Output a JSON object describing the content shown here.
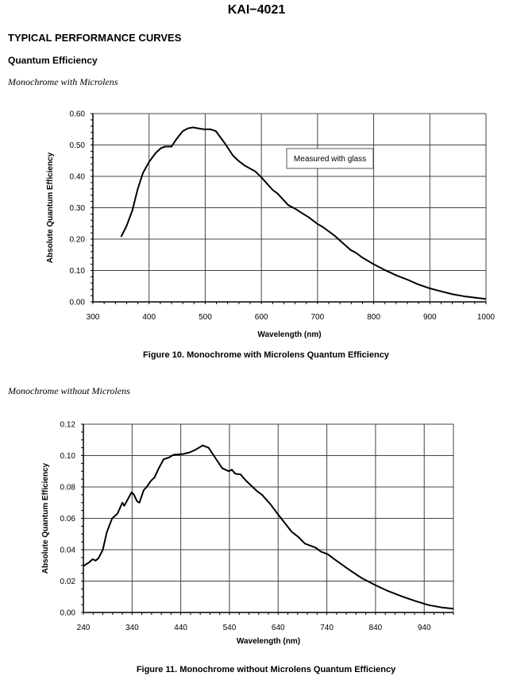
{
  "header": {
    "title": "KAI−4021",
    "section": "TYPICAL PERFORMANCE CURVES",
    "subsection": "Quantum Efficiency"
  },
  "chart_data": [
    {
      "type": "line",
      "heading": "Monochrome with Microlens",
      "caption": "Figure 10. Monochrome with Microlens Quantum Efficiency",
      "xlabel": "Wavelength (nm)",
      "ylabel": "Absolute Quantum Efficiency",
      "xlim": [
        300,
        1000
      ],
      "ylim": [
        0,
        0.6
      ],
      "xticks": [
        300,
        400,
        500,
        600,
        700,
        800,
        900,
        1000
      ],
      "xtick_labels": [
        "300",
        "400",
        "500",
        "600",
        "700",
        "800",
        "900",
        "1000"
      ],
      "yticks": [
        0,
        0.1,
        0.2,
        0.3,
        0.4,
        0.5,
        0.6
      ],
      "ytick_labels": [
        "0.00",
        "0.10",
        "0.20",
        "0.30",
        "0.40",
        "0.50",
        "0.60"
      ],
      "x_minor_step": 20,
      "y_minor_step": 0.02,
      "grid": true,
      "annotation": "Measured with glass",
      "series": [
        {
          "name": "Monochrome with Microlens",
          "color": "#000000",
          "x": [
            350,
            360,
            370,
            380,
            389,
            400,
            412,
            421,
            429,
            440,
            448,
            460,
            469,
            478,
            488,
            497,
            509,
            519,
            535,
            549,
            559,
            570,
            589,
            600,
            620,
            629,
            648,
            660,
            672,
            684,
            700,
            710,
            731,
            747,
            759,
            768,
            780,
            799,
            818,
            842,
            860,
            879,
            898,
            917,
            941,
            964,
            1000
          ],
          "y": [
            0.207,
            0.242,
            0.29,
            0.361,
            0.41,
            0.446,
            0.475,
            0.49,
            0.495,
            0.495,
            0.517,
            0.544,
            0.553,
            0.556,
            0.553,
            0.55,
            0.55,
            0.544,
            0.505,
            0.467,
            0.45,
            0.435,
            0.416,
            0.397,
            0.357,
            0.345,
            0.308,
            0.297,
            0.283,
            0.27,
            0.248,
            0.238,
            0.21,
            0.184,
            0.165,
            0.157,
            0.141,
            0.121,
            0.103,
            0.083,
            0.071,
            0.056,
            0.044,
            0.035,
            0.024,
            0.017,
            0.009
          ]
        }
      ]
    },
    {
      "type": "line",
      "heading": "Monochrome without Microlens",
      "caption": "Figure 11. Monochrome without Microlens Quantum Efficiency",
      "xlabel": "Wavelength (nm)",
      "ylabel": "Absolute Quantum Efficiency",
      "xlim": [
        240,
        1000
      ],
      "ylim": [
        0,
        0.12
      ],
      "xticks": [
        240,
        340,
        440,
        540,
        640,
        740,
        840,
        940
      ],
      "xtick_labels": [
        "240",
        "340",
        "440",
        "540",
        "640",
        "740",
        "840",
        "940"
      ],
      "yticks": [
        0,
        0.02,
        0.04,
        0.06,
        0.08,
        0.1,
        0.12
      ],
      "ytick_labels": [
        "0.00",
        "0.02",
        "0.04",
        "0.06",
        "0.08",
        "0.10",
        "0.12"
      ],
      "x_minor_step": 20,
      "y_minor_step": 0.005,
      "grid": true,
      "series": [
        {
          "name": "Monochrome without Microlens",
          "color": "#000000",
          "x": [
            240,
            252,
            259,
            265,
            271,
            280,
            288,
            299,
            310,
            320,
            324,
            339,
            344,
            350,
            355,
            364,
            370,
            379,
            386,
            395,
            405,
            416,
            425,
            445,
            458,
            469,
            485,
            497,
            511,
            525,
            539,
            545,
            552,
            563,
            574,
            596,
            607,
            624,
            640,
            668,
            682,
            695,
            717,
            728,
            742,
            756,
            783,
            811,
            839,
            866,
            894,
            921,
            949,
            976,
            1000
          ],
          "y": [
            0.0296,
            0.032,
            0.034,
            0.033,
            0.0346,
            0.04,
            0.051,
            0.06,
            0.063,
            0.07,
            0.068,
            0.0766,
            0.075,
            0.071,
            0.07,
            0.078,
            0.08,
            0.084,
            0.086,
            0.092,
            0.0977,
            0.0988,
            0.1005,
            0.101,
            0.102,
            0.1035,
            0.1065,
            0.105,
            0.0985,
            0.092,
            0.09,
            0.091,
            0.0884,
            0.088,
            0.084,
            0.0775,
            0.075,
            0.069,
            0.0624,
            0.0514,
            0.048,
            0.0439,
            0.0413,
            0.0388,
            0.0371,
            0.0338,
            0.0279,
            0.022,
            0.0175,
            0.0136,
            0.0103,
            0.0074,
            0.0047,
            0.0032,
            0.0024
          ]
        }
      ]
    }
  ]
}
